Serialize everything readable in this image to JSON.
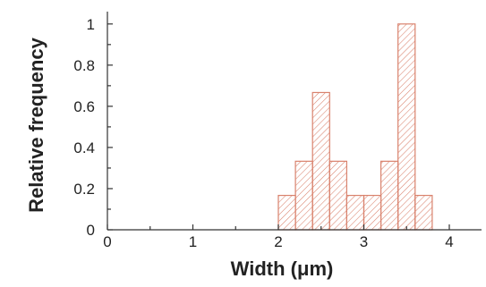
{
  "chart_data": {
    "type": "bar",
    "title": "",
    "xlabel": "Width (μm)",
    "ylabel": "Relative frequency",
    "xlim": [
      0,
      4.3
    ],
    "ylim": [
      0,
      1.06
    ],
    "x_ticks": [
      "0",
      "1",
      "2",
      "3",
      "4"
    ],
    "y_ticks": [
      "0",
      "0.2",
      "0.4",
      "0.6",
      "0.8",
      "1"
    ],
    "bin_width": 0.2,
    "bins": [
      {
        "start": 2.0,
        "end": 2.2,
        "value": 0.167
      },
      {
        "start": 2.2,
        "end": 2.4,
        "value": 0.333
      },
      {
        "start": 2.4,
        "end": 2.6,
        "value": 0.667
      },
      {
        "start": 2.6,
        "end": 2.8,
        "value": 0.333
      },
      {
        "start": 2.8,
        "end": 3.0,
        "value": 0.167
      },
      {
        "start": 3.0,
        "end": 3.2,
        "value": 0.167
      },
      {
        "start": 3.2,
        "end": 3.4,
        "value": 0.333
      },
      {
        "start": 3.4,
        "end": 3.6,
        "value": 1.0
      },
      {
        "start": 3.6,
        "end": 3.8,
        "value": 0.167
      }
    ],
    "bar_color": "#d9826d",
    "grid": false
  }
}
